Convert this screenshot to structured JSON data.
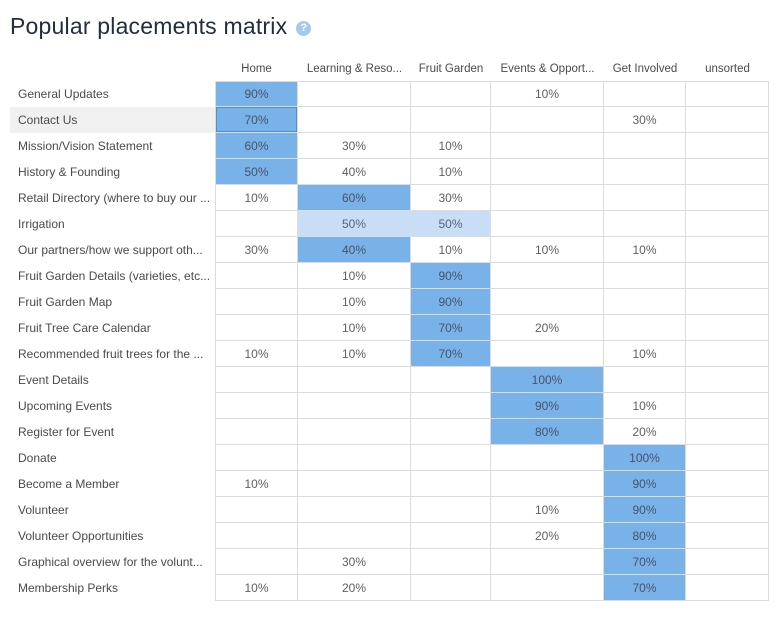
{
  "header": {
    "title": "Popular placements matrix",
    "help_glyph": "?"
  },
  "colors": {
    "hl_dark": "#79b2e9",
    "hl_light": "#c8def6",
    "hover_border": "#4a90d9",
    "row_hover_bg": "#f0f0f0",
    "help_bg": "#a5c8eb",
    "title_color": "#222d3d",
    "grid_line": "#dcdcdc",
    "cell_text": "#5f5f5f",
    "label_text": "#4a4a4a"
  },
  "matrix": {
    "columns": [
      {
        "label": "Home"
      },
      {
        "label": "Learning & Reso..."
      },
      {
        "label": "Fruit Garden"
      },
      {
        "label": "Events & Opport..."
      },
      {
        "label": "Get Involved"
      },
      {
        "label": "unsorted"
      }
    ],
    "rows": [
      {
        "label": "General Updates",
        "highlighted": false,
        "cells": [
          {
            "v": "90%",
            "h": "dark"
          },
          {
            "v": ""
          },
          {
            "v": ""
          },
          {
            "v": "10%"
          },
          {
            "v": ""
          },
          {
            "v": ""
          }
        ]
      },
      {
        "label": "Contact Us",
        "highlighted": true,
        "cells": [
          {
            "v": "70%",
            "h": "dark",
            "hover": true
          },
          {
            "v": ""
          },
          {
            "v": ""
          },
          {
            "v": ""
          },
          {
            "v": "30%"
          },
          {
            "v": ""
          }
        ]
      },
      {
        "label": "Mission/Vision Statement",
        "highlighted": false,
        "cells": [
          {
            "v": "60%",
            "h": "dark"
          },
          {
            "v": "30%"
          },
          {
            "v": "10%"
          },
          {
            "v": ""
          },
          {
            "v": ""
          },
          {
            "v": ""
          }
        ]
      },
      {
        "label": "History & Founding",
        "highlighted": false,
        "cells": [
          {
            "v": "50%",
            "h": "dark"
          },
          {
            "v": "40%"
          },
          {
            "v": "10%"
          },
          {
            "v": ""
          },
          {
            "v": ""
          },
          {
            "v": ""
          }
        ]
      },
      {
        "label": "Retail Directory (where to buy our ...",
        "highlighted": false,
        "cells": [
          {
            "v": "10%"
          },
          {
            "v": "60%",
            "h": "dark"
          },
          {
            "v": "30%"
          },
          {
            "v": ""
          },
          {
            "v": ""
          },
          {
            "v": ""
          }
        ]
      },
      {
        "label": "Irrigation",
        "highlighted": false,
        "cells": [
          {
            "v": ""
          },
          {
            "v": "50%",
            "h": "light"
          },
          {
            "v": "50%",
            "h": "light"
          },
          {
            "v": ""
          },
          {
            "v": ""
          },
          {
            "v": ""
          }
        ]
      },
      {
        "label": "Our partners/how we support oth...",
        "highlighted": false,
        "cells": [
          {
            "v": "30%"
          },
          {
            "v": "40%",
            "h": "dark"
          },
          {
            "v": "10%"
          },
          {
            "v": "10%"
          },
          {
            "v": "10%"
          },
          {
            "v": ""
          }
        ]
      },
      {
        "label": "Fruit Garden Details (varieties, etc...",
        "highlighted": false,
        "cells": [
          {
            "v": ""
          },
          {
            "v": "10%"
          },
          {
            "v": "90%",
            "h": "dark"
          },
          {
            "v": ""
          },
          {
            "v": ""
          },
          {
            "v": ""
          }
        ]
      },
      {
        "label": "Fruit Garden Map",
        "highlighted": false,
        "cells": [
          {
            "v": ""
          },
          {
            "v": "10%"
          },
          {
            "v": "90%",
            "h": "dark"
          },
          {
            "v": ""
          },
          {
            "v": ""
          },
          {
            "v": ""
          }
        ]
      },
      {
        "label": "Fruit Tree Care Calendar",
        "highlighted": false,
        "cells": [
          {
            "v": ""
          },
          {
            "v": "10%"
          },
          {
            "v": "70%",
            "h": "dark"
          },
          {
            "v": "20%"
          },
          {
            "v": ""
          },
          {
            "v": ""
          }
        ]
      },
      {
        "label": "Recommended fruit trees for the ...",
        "highlighted": false,
        "cells": [
          {
            "v": "10%"
          },
          {
            "v": "10%"
          },
          {
            "v": "70%",
            "h": "dark"
          },
          {
            "v": ""
          },
          {
            "v": "10%"
          },
          {
            "v": ""
          }
        ]
      },
      {
        "label": "Event Details",
        "highlighted": false,
        "cells": [
          {
            "v": ""
          },
          {
            "v": ""
          },
          {
            "v": ""
          },
          {
            "v": "100%",
            "h": "dark"
          },
          {
            "v": ""
          },
          {
            "v": ""
          }
        ]
      },
      {
        "label": "Upcoming Events",
        "highlighted": false,
        "cells": [
          {
            "v": ""
          },
          {
            "v": ""
          },
          {
            "v": ""
          },
          {
            "v": "90%",
            "h": "dark"
          },
          {
            "v": "10%"
          },
          {
            "v": ""
          }
        ]
      },
      {
        "label": "Register for Event",
        "highlighted": false,
        "cells": [
          {
            "v": ""
          },
          {
            "v": ""
          },
          {
            "v": ""
          },
          {
            "v": "80%",
            "h": "dark"
          },
          {
            "v": "20%"
          },
          {
            "v": ""
          }
        ]
      },
      {
        "label": "Donate",
        "highlighted": false,
        "cells": [
          {
            "v": ""
          },
          {
            "v": ""
          },
          {
            "v": ""
          },
          {
            "v": ""
          },
          {
            "v": "100%",
            "h": "dark"
          },
          {
            "v": ""
          }
        ]
      },
      {
        "label": "Become a Member",
        "highlighted": false,
        "cells": [
          {
            "v": "10%"
          },
          {
            "v": ""
          },
          {
            "v": ""
          },
          {
            "v": ""
          },
          {
            "v": "90%",
            "h": "dark"
          },
          {
            "v": ""
          }
        ]
      },
      {
        "label": "Volunteer",
        "highlighted": false,
        "cells": [
          {
            "v": ""
          },
          {
            "v": ""
          },
          {
            "v": ""
          },
          {
            "v": "10%"
          },
          {
            "v": "90%",
            "h": "dark"
          },
          {
            "v": ""
          }
        ]
      },
      {
        "label": "Volunteer Opportunities",
        "highlighted": false,
        "cells": [
          {
            "v": ""
          },
          {
            "v": ""
          },
          {
            "v": ""
          },
          {
            "v": "20%"
          },
          {
            "v": "80%",
            "h": "dark"
          },
          {
            "v": ""
          }
        ]
      },
      {
        "label": "Graphical overview for the volunt...",
        "highlighted": false,
        "cells": [
          {
            "v": ""
          },
          {
            "v": "30%"
          },
          {
            "v": ""
          },
          {
            "v": ""
          },
          {
            "v": "70%",
            "h": "dark"
          },
          {
            "v": ""
          }
        ]
      },
      {
        "label": "Membership Perks",
        "highlighted": false,
        "cells": [
          {
            "v": "10%"
          },
          {
            "v": "20%"
          },
          {
            "v": ""
          },
          {
            "v": ""
          },
          {
            "v": "70%",
            "h": "dark"
          },
          {
            "v": ""
          }
        ]
      }
    ]
  }
}
